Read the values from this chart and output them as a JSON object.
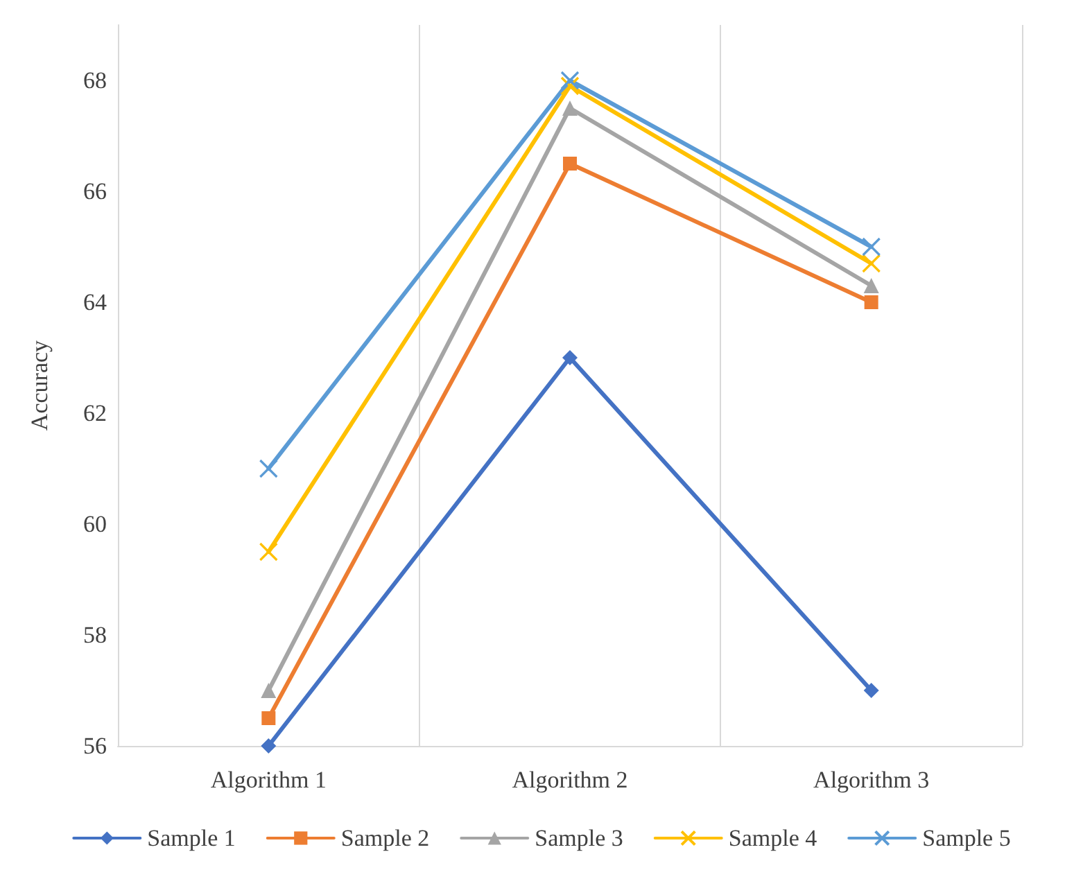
{
  "chart_data": {
    "type": "line",
    "ylabel": "Accuracy",
    "categories": [
      "Algorithm 1",
      "Algorithm 2",
      "Algorithm 3"
    ],
    "ylim": [
      56,
      69
    ],
    "yticks": [
      56,
      58,
      60,
      62,
      64,
      66,
      68
    ],
    "grid": "x",
    "legend": "bottom",
    "line_style": "solid",
    "series": [
      {
        "name": "Sample 1",
        "color": "#4472c4",
        "marker": "diamond",
        "values": [
          56,
          63,
          57
        ]
      },
      {
        "name": "Sample 2",
        "color": "#ed7d31",
        "marker": "square",
        "values": [
          56.5,
          66.5,
          64
        ]
      },
      {
        "name": "Sample 3",
        "color": "#a5a5a5",
        "marker": "triangle",
        "values": [
          57,
          67.5,
          64.3
        ]
      },
      {
        "name": "Sample 4",
        "color": "#ffc000",
        "marker": "cross",
        "values": [
          59.5,
          67.9,
          64.7
        ]
      },
      {
        "name": "Sample 5",
        "color": "#5b9bd5",
        "marker": "cross",
        "values": [
          61,
          68,
          65
        ]
      }
    ]
  }
}
